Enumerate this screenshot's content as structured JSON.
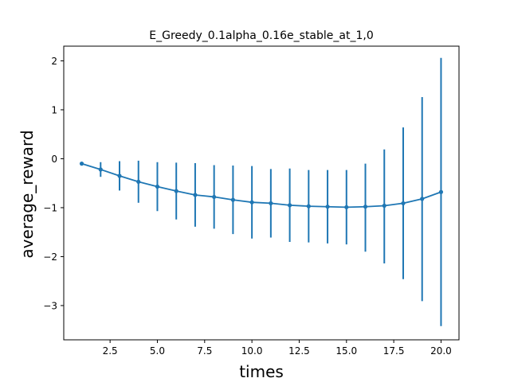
{
  "chart_data": {
    "type": "line",
    "title": "E_Greedy_0.1alpha_0.16e_stable_at_1,0",
    "xlabel": "times",
    "ylabel": "average_reward",
    "xlim": [
      0.05,
      20.95
    ],
    "ylim": [
      -3.7,
      2.3
    ],
    "xticks": [
      2.5,
      5.0,
      7.5,
      10.0,
      12.5,
      15.0,
      17.5,
      20.0
    ],
    "xtick_labels": [
      "2.5",
      "5.0",
      "7.5",
      "10.0",
      "12.5",
      "15.0",
      "17.5",
      "20.0"
    ],
    "yticks": [
      -3,
      -2,
      -1,
      0,
      1,
      2
    ],
    "ytick_labels": [
      "−3",
      "−2",
      "−1",
      "0",
      "1",
      "2"
    ],
    "grid": false,
    "legend": "none",
    "series": [
      {
        "color": "#1f77b4",
        "marker": "circle",
        "x": [
          1,
          2,
          3,
          4,
          5,
          6,
          7,
          8,
          9,
          10,
          11,
          12,
          13,
          14,
          15,
          16,
          17,
          18,
          19,
          20
        ],
        "y": [
          -0.1,
          -0.22,
          -0.35,
          -0.47,
          -0.57,
          -0.66,
          -0.74,
          -0.78,
          -0.84,
          -0.89,
          -0.91,
          -0.95,
          -0.97,
          -0.98,
          -0.99,
          -0.98,
          -0.96,
          -0.91,
          -0.82,
          -0.68
        ],
        "yerr_low": [
          -0.1,
          -0.37,
          -0.65,
          -0.9,
          -1.07,
          -1.24,
          -1.39,
          -1.43,
          -1.54,
          -1.63,
          -1.61,
          -1.7,
          -1.71,
          -1.73,
          -1.75,
          -1.9,
          -2.14,
          -2.46,
          -2.91,
          -3.42
        ],
        "yerr_high": [
          -0.1,
          -0.07,
          -0.05,
          -0.04,
          -0.07,
          -0.08,
          -0.09,
          -0.13,
          -0.14,
          -0.15,
          -0.21,
          -0.2,
          -0.23,
          -0.23,
          -0.23,
          -0.1,
          0.19,
          0.64,
          1.26,
          2.06
        ]
      }
    ]
  }
}
